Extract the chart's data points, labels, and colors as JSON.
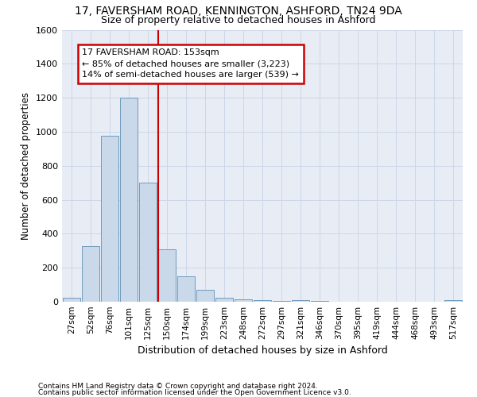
{
  "title1": "17, FAVERSHAM ROAD, KENNINGTON, ASHFORD, TN24 9DA",
  "title2": "Size of property relative to detached houses in Ashford",
  "xlabel": "Distribution of detached houses by size in Ashford",
  "ylabel": "Number of detached properties",
  "bar_labels": [
    "27sqm",
    "52sqm",
    "76sqm",
    "101sqm",
    "125sqm",
    "150sqm",
    "174sqm",
    "199sqm",
    "223sqm",
    "248sqm",
    "272sqm",
    "297sqm",
    "321sqm",
    "346sqm",
    "370sqm",
    "395sqm",
    "419sqm",
    "444sqm",
    "468sqm",
    "493sqm",
    "517sqm"
  ],
  "bar_values": [
    25,
    325,
    975,
    1200,
    700,
    310,
    150,
    70,
    25,
    15,
    10,
    5,
    10,
    5,
    0,
    0,
    0,
    0,
    0,
    0,
    10
  ],
  "bar_color": "#c9d9ea",
  "bar_edge_color": "#5f8fb4",
  "annotation_line1": "17 FAVERSHAM ROAD: 153sqm",
  "annotation_line2": "← 85% of detached houses are smaller (3,223)",
  "annotation_line3": "14% of semi-detached houses are larger (539) →",
  "annotation_box_color": "#ffffff",
  "annotation_box_edge": "#cc0000",
  "vline_color": "#cc0000",
  "grid_color": "#cdd6e8",
  "background_color": "#e8edf5",
  "footer1": "Contains HM Land Registry data © Crown copyright and database right 2024.",
  "footer2": "Contains public sector information licensed under the Open Government Licence v3.0.",
  "ylim": [
    0,
    1600
  ],
  "yticks": [
    0,
    200,
    400,
    600,
    800,
    1000,
    1200,
    1400,
    1600
  ]
}
